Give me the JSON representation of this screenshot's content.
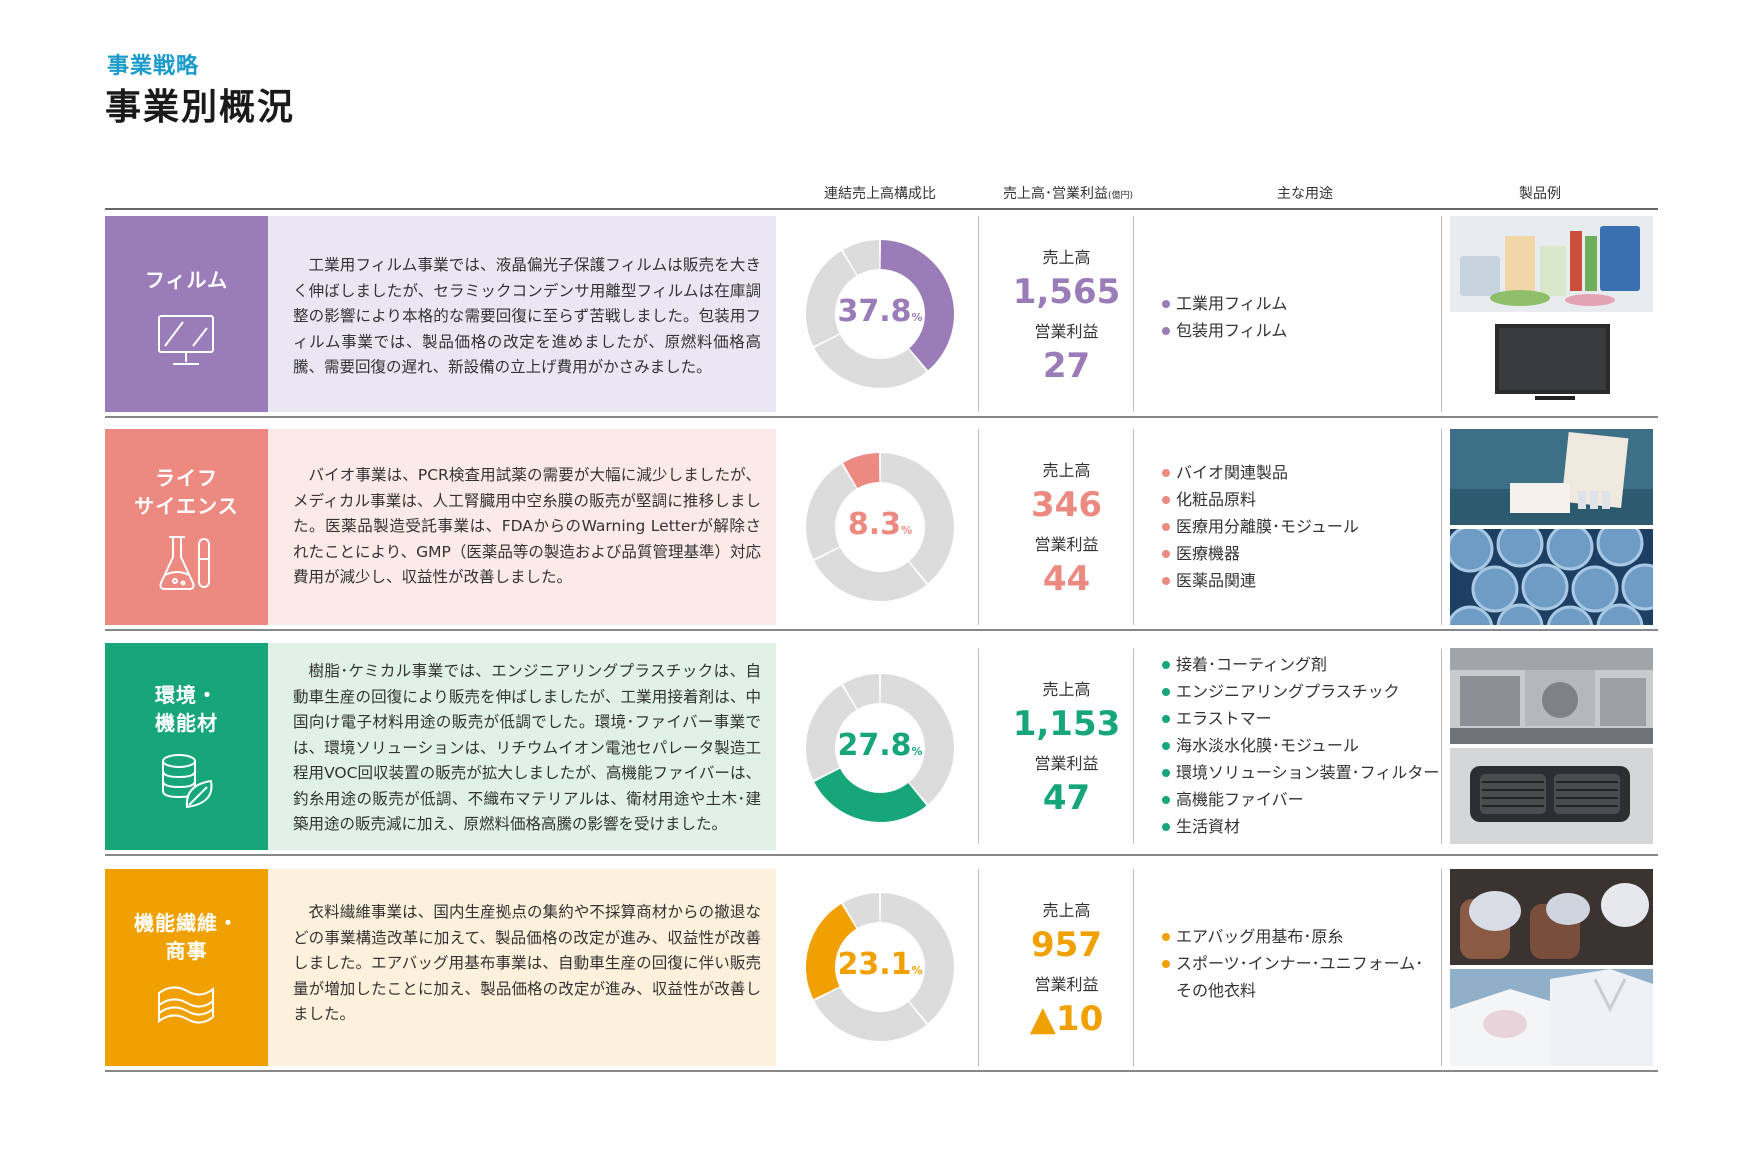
{
  "header": {
    "kicker": "事業戦略",
    "title": "事業別概況"
  },
  "columns": {
    "ratio": "連結売上高構成比",
    "sales_profit": "売上高･営業利益",
    "sales_profit_unit": "(億円)",
    "uses": "主な用途",
    "products": "製品例"
  },
  "segments": [
    {
      "name": "フィルム",
      "icon": "monitor-icon",
      "color": "#9a7cb8",
      "bg": "#ebe6f3",
      "description": "工業用フィルム事業では、液晶偏光子保護フィルムは販売を大きく伸ばしましたが、セラミックコンデンサ用離型フィルムは在庫調整の影響により本格的な需要回復に至らず苦戦しました。包装用フィルム事業では、製品価格の改定を進めましたが、原燃料価格高騰、需要回復の遅れ、新設備の立上げ費用がかさみました。",
      "share": 37.8,
      "share_label": "37.8",
      "share_unit": "%",
      "sales_label": "売上高",
      "sales": "1,565",
      "profit_label": "営業利益",
      "profit": "27",
      "uses": [
        "工業用フィルム",
        "包装用フィルム"
      ],
      "photos": [
        "package-products-photo",
        "television-photo"
      ]
    },
    {
      "name": "ライフサイエンス",
      "name_lines": [
        "ライフ",
        "サイエンス"
      ],
      "icon": "flask-icon",
      "color": "#ec8a82",
      "bg": "#fbeae8",
      "description": "バイオ事業は、PCR検査用試薬の需要が大幅に減少しましたが、メディカル事業は、人工腎臓用中空糸膜の販売が堅調に推移しました。医薬品製造受託事業は、FDAからのWarning Letterが解除されたことにより、GMP（医薬品等の製造および品質管理基準）対応費用が減少し、収益性が改善しました。",
      "share": 8.3,
      "share_label": "8.3",
      "share_unit": "%",
      "sales_label": "売上高",
      "sales": "346",
      "profit_label": "営業利益",
      "profit": "44",
      "uses": [
        "バイオ関連製品",
        "化粧品原料",
        "医療用分離膜･モジュール",
        "医療機器",
        "医薬品関連"
      ],
      "photos": [
        "reagent-kit-photo",
        "hollow-fiber-photo"
      ]
    },
    {
      "name": "環境・機能材",
      "name_lines": [
        "環境・",
        "機能材"
      ],
      "icon": "leaf-coin-icon",
      "color": "#16a67a",
      "bg": "#e0f1e8",
      "description": "樹脂･ケミカル事業では、エンジニアリングプラスチックは、自動車生産の回復により販売を伸ばしましたが、工業用接着剤は、中国向け電子材料用途の販売が低調でした。環境･ファイバー事業では、環境ソリューションは、リチウムイオン電池セパレータ製造工程用VOC回収装置の販売が拡大しましたが、高機能ファイバーは、釣糸用途の販売が低調、不織布マテリアルは、衛材用途や土木･建築用途の販売減に加え、原燃料価格高騰の影響を受けました。",
      "share": 27.8,
      "share_label": "27.8",
      "share_unit": "%",
      "sales_label": "売上高",
      "sales": "1,153",
      "profit_label": "営業利益",
      "profit": "47",
      "uses": [
        "接着･コーティング剤",
        "エンジニアリングプラスチック",
        "エラストマー",
        "海水淡水化膜･モジュール",
        "環境ソリューション装置･フィルター",
        "高機能ファイバー",
        "生活資材"
      ],
      "photos": [
        "plant-equipment-photo",
        "car-vent-photo"
      ]
    },
    {
      "name": "機能繊維・商事",
      "name_lines": [
        "機能繊維・",
        "商事"
      ],
      "icon": "fabric-icon",
      "color": "#f0a000",
      "bg": "#fdf1dc",
      "description": "衣料繊維事業は、国内生産拠点の集約や不採算商材からの撤退などの事業構造改革に加えて、製品価格の改定が進み、収益性が改善しました。エアバッグ用基布事業は、自動車生産の回復に伴い販売量が増加したことに加え、製品価格の改定が進み、収益性が改善しました。",
      "share": 23.1,
      "share_label": "23.1",
      "share_unit": "%",
      "sales_label": "売上高",
      "sales": "957",
      "profit_label": "営業利益",
      "profit": "▲10",
      "uses": [
        "エアバッグ用基布･原糸",
        "スポーツ･インナー･ユニフォーム･",
        "その他衣料"
      ],
      "photos": [
        "airbag-photo",
        "shirts-photo"
      ]
    }
  ]
}
